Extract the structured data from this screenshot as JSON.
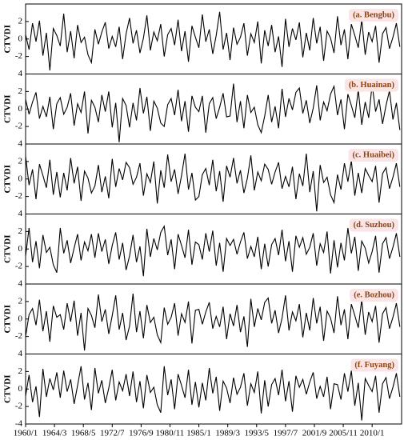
{
  "chart_data": {
    "type": "line",
    "ylabel": "CTVDI",
    "xlim": [
      0,
      651
    ],
    "ylim": [
      -4,
      4
    ],
    "yticks": [
      -4,
      -2,
      0,
      2,
      4
    ],
    "xticks": [
      {
        "value": 0,
        "label": "1960/1"
      },
      {
        "value": 50,
        "label": "1964/3"
      },
      {
        "value": 100,
        "label": "1968/5"
      },
      {
        "value": 150,
        "label": "1972/7"
      },
      {
        "value": 200,
        "label": "1976/9"
      },
      {
        "value": 250,
        "label": "1980/11"
      },
      {
        "value": 300,
        "label": "1985/1"
      },
      {
        "value": 350,
        "label": "1989/3"
      },
      {
        "value": 400,
        "label": "1993/5"
      },
      {
        "value": 450,
        "label": "1997/7"
      },
      {
        "value": 500,
        "label": "2001/9"
      },
      {
        "value": 550,
        "label": "2005/11"
      },
      {
        "value": 600,
        "label": "2010/1"
      }
    ],
    "x": [
      0,
      6,
      12,
      18,
      24,
      30,
      36,
      42,
      48,
      54,
      60,
      66,
      72,
      78,
      84,
      90,
      96,
      102,
      108,
      114,
      120,
      126,
      132,
      138,
      144,
      150,
      156,
      162,
      168,
      174,
      180,
      186,
      192,
      198,
      204,
      210,
      216,
      222,
      228,
      234,
      240,
      246,
      252,
      258,
      264,
      270,
      276,
      282,
      288,
      294,
      300,
      306,
      312,
      318,
      324,
      330,
      336,
      342,
      348,
      354,
      360,
      366,
      372,
      378,
      384,
      390,
      396,
      402,
      408,
      414,
      420,
      426,
      432,
      438,
      444,
      450,
      456,
      462,
      468,
      474,
      480,
      486,
      492,
      498,
      504,
      510,
      516,
      522,
      528,
      534,
      540,
      546,
      552,
      558,
      564,
      570,
      576,
      582,
      588,
      594,
      600,
      606,
      612,
      618,
      624,
      630,
      636,
      642,
      648
    ],
    "series": [
      {
        "name": "(a. Bengbu)",
        "color": "#000000",
        "values": [
          0.5,
          -1.2,
          1.8,
          -0.3,
          2.1,
          -1.9,
          0.7,
          -3.6,
          1.2,
          0.4,
          -0.8,
          2.9,
          -1.5,
          0.9,
          -2.2,
          1.6,
          -0.4,
          0.2,
          -1.8,
          -2.7,
          1.1,
          -0.6,
          0.8,
          1.9,
          -1.1,
          0.3,
          -0.9,
          1.4,
          -2.3,
          0.6,
          2.4,
          -0.5,
          1.0,
          -1.6,
          0.1,
          2.7,
          -1.3,
          0.8,
          -0.2,
          1.7,
          -2.0,
          0.5,
          1.2,
          -0.7,
          2.2,
          -1.4,
          0.9,
          -2.6,
          1.5,
          0.2,
          -1.0,
          2.8,
          -0.3,
          1.1,
          -1.7,
          0.4,
          3.1,
          -1.2,
          0.7,
          -2.4,
          1.3,
          -0.6,
          0.2,
          1.8,
          -1.9,
          0.6,
          -0.4,
          2.0,
          -2.8,
          1.0,
          -0.8,
          1.6,
          -1.5,
          0.3,
          -3.2,
          2.3,
          -0.9,
          1.2,
          -0.1,
          1.9,
          -2.1,
          0.7,
          -1.3,
          2.4,
          -0.5,
          1.4,
          -2.5,
          0.9,
          0.1,
          -1.6,
          2.6,
          -0.7,
          1.1,
          -2.3,
          1.7,
          0.4,
          -1.0,
          2.2,
          -1.8,
          0.8,
          -0.3,
          1.5,
          -2.7,
          0.6,
          1.3,
          -1.1,
          0.2,
          1.8,
          -0.9
        ]
      },
      {
        "name": "(b. Huainan)",
        "color": "#000000",
        "values": [
          1.1,
          -0.6,
          0.8,
          1.9,
          -1.1,
          0.3,
          -0.9,
          1.4,
          -2.3,
          0.6,
          1.3,
          -0.6,
          0.2,
          1.8,
          -1.9,
          0.6,
          -0.4,
          2.0,
          -2.8,
          1.0,
          0.2,
          -1.5,
          1.6,
          -0.3,
          2.0,
          -2.1,
          0.7,
          -3.8,
          1.2,
          0.4,
          -2.1,
          0.7,
          -1.3,
          2.4,
          -0.5,
          1.4,
          -2.5,
          0.9,
          0.1,
          -1.6,
          -2.0,
          0.5,
          1.2,
          -0.7,
          2.2,
          -1.4,
          0.9,
          -2.6,
          1.5,
          0.2,
          -0.3,
          1.5,
          -2.7,
          0.6,
          1.3,
          -1.1,
          0.2,
          1.8,
          -0.9,
          -0.8,
          2.9,
          -1.5,
          0.9,
          -2.2,
          1.6,
          -0.4,
          0.2,
          -1.8,
          -2.7,
          -0.8,
          1.6,
          -1.5,
          0.3,
          -2.2,
          2.3,
          -0.9,
          1.2,
          -0.1,
          1.9,
          2.4,
          -0.5,
          1.0,
          -1.6,
          0.1,
          2.7,
          -1.3,
          0.8,
          -0.2,
          1.7,
          2.6,
          -0.7,
          1.1,
          -2.3,
          1.7,
          0.4,
          -1.0,
          2.2,
          -1.8,
          0.8,
          -1.0,
          2.8,
          -0.3,
          1.1,
          -1.7,
          0.4,
          2.1,
          -1.2,
          0.7,
          -2.4
        ]
      },
      {
        "name": "(c. Huaibei)",
        "color": "#000000",
        "values": [
          2.6,
          -0.7,
          1.1,
          -2.3,
          1.7,
          0.4,
          -1.0,
          2.2,
          -1.8,
          0.8,
          -2.1,
          0.7,
          -1.3,
          2.4,
          -0.5,
          1.4,
          -2.5,
          0.9,
          0.1,
          -1.6,
          -0.8,
          1.6,
          -1.5,
          0.3,
          -2.2,
          2.3,
          -0.9,
          1.2,
          -0.1,
          1.9,
          1.3,
          -0.6,
          0.2,
          1.8,
          -1.9,
          0.6,
          -0.4,
          2.0,
          -2.8,
          1.0,
          -1.0,
          2.8,
          -0.3,
          1.1,
          -1.7,
          0.4,
          2.9,
          -1.2,
          0.7,
          -2.4,
          -2.0,
          0.5,
          1.2,
          -0.7,
          2.2,
          -1.4,
          0.9,
          -2.6,
          1.5,
          0.2,
          2.4,
          -0.5,
          1.0,
          -1.6,
          0.1,
          2.7,
          -1.3,
          0.8,
          -0.2,
          1.7,
          1.1,
          -0.6,
          0.8,
          1.9,
          -1.1,
          0.3,
          -0.9,
          1.4,
          -2.3,
          0.6,
          -0.8,
          2.9,
          -1.5,
          0.9,
          -3.7,
          1.6,
          -0.4,
          0.2,
          -1.8,
          -2.7,
          0.5,
          -1.2,
          1.8,
          -0.3,
          2.1,
          -1.9,
          0.7,
          -1.6,
          1.2,
          0.4,
          -0.3,
          1.5,
          -2.7,
          0.6,
          1.3,
          -1.1,
          0.2,
          1.8,
          -0.9
        ]
      },
      {
        "name": "(d. Suzhou)",
        "color": "#000000",
        "values": [
          -0.8,
          2.4,
          -1.5,
          0.9,
          -2.2,
          1.6,
          -0.4,
          0.2,
          -1.8,
          -2.7,
          2.4,
          -0.5,
          1.0,
          -1.6,
          0.1,
          1.7,
          -1.3,
          0.8,
          -0.2,
          1.7,
          -1.0,
          1.8,
          -0.3,
          1.1,
          -1.7,
          0.4,
          1.9,
          -1.2,
          0.7,
          -2.4,
          -0.8,
          1.6,
          -1.5,
          0.3,
          -3.1,
          2.3,
          -0.9,
          1.2,
          -0.1,
          1.9,
          2.6,
          -0.7,
          1.1,
          -2.3,
          1.7,
          0.4,
          -1.0,
          2.2,
          -1.8,
          0.8,
          0.5,
          -1.2,
          1.8,
          -0.3,
          2.1,
          -1.9,
          0.7,
          -2.6,
          1.2,
          0.4,
          1.1,
          -0.6,
          0.8,
          1.9,
          -1.1,
          0.3,
          -0.9,
          1.4,
          -2.3,
          0.6,
          -2.0,
          0.5,
          1.2,
          -0.7,
          2.2,
          -1.4,
          0.9,
          -2.6,
          1.5,
          0.2,
          1.3,
          -0.6,
          0.2,
          1.8,
          -1.9,
          0.6,
          -0.4,
          2.0,
          -2.8,
          1.0,
          -2.1,
          0.7,
          -1.3,
          2.4,
          -0.5,
          1.4,
          -2.5,
          0.9,
          0.1,
          -1.6,
          -0.3,
          1.5,
          -2.7,
          0.6,
          1.3,
          -1.1,
          0.2,
          1.8,
          -0.9
        ]
      },
      {
        "name": "(e. Bozhou)",
        "color": "#000000",
        "values": [
          -2.0,
          0.5,
          1.2,
          -0.7,
          2.2,
          -1.4,
          0.9,
          -2.6,
          1.5,
          0.2,
          0.5,
          -1.2,
          1.8,
          -0.3,
          2.1,
          -1.9,
          0.7,
          -3.6,
          1.2,
          0.4,
          -1.0,
          2.8,
          -0.3,
          1.1,
          -1.7,
          0.4,
          2.7,
          -1.2,
          0.7,
          -2.4,
          -0.8,
          2.9,
          -1.5,
          0.9,
          -2.2,
          1.6,
          -0.4,
          0.2,
          -1.8,
          -2.7,
          1.3,
          -0.6,
          0.2,
          1.8,
          -1.9,
          0.6,
          -0.4,
          2.0,
          -2.8,
          1.0,
          1.1,
          -0.6,
          0.8,
          1.9,
          -1.1,
          0.3,
          -0.9,
          1.4,
          -2.3,
          0.6,
          -0.8,
          1.6,
          -1.5,
          0.3,
          -3.2,
          2.3,
          -0.9,
          1.2,
          -0.1,
          1.9,
          2.4,
          -0.5,
          1.0,
          -1.6,
          0.1,
          2.7,
          -1.3,
          0.8,
          -0.2,
          1.7,
          -2.1,
          0.7,
          -1.3,
          2.4,
          -0.5,
          1.4,
          -2.5,
          0.9,
          0.1,
          -1.6,
          2.6,
          -0.7,
          1.1,
          -2.3,
          1.7,
          0.4,
          -1.0,
          2.2,
          -1.8,
          0.8,
          -0.3,
          1.5,
          -2.7,
          0.6,
          1.3,
          -1.1,
          0.2,
          1.8,
          -0.9
        ]
      },
      {
        "name": "(f. Fuyang)",
        "color": "#000000",
        "values": [
          -0.8,
          1.6,
          -1.5,
          0.3,
          -3.2,
          2.3,
          -0.9,
          1.2,
          -0.1,
          1.9,
          -1.0,
          2.1,
          -0.3,
          1.1,
          -1.7,
          0.4,
          2.6,
          -1.2,
          0.7,
          -2.4,
          2.4,
          -0.5,
          1.0,
          -1.6,
          0.1,
          2.2,
          -1.3,
          0.8,
          -0.2,
          1.7,
          -0.8,
          2.0,
          -1.5,
          0.9,
          -2.2,
          1.6,
          -0.4,
          0.2,
          -1.8,
          -2.7,
          2.6,
          -0.7,
          1.1,
          -2.3,
          1.7,
          0.4,
          -1.0,
          2.2,
          -1.8,
          0.8,
          -2.1,
          0.7,
          -1.3,
          2.4,
          -0.5,
          1.4,
          -2.5,
          0.9,
          0.1,
          -1.6,
          1.3,
          -0.6,
          0.2,
          1.8,
          -1.9,
          0.6,
          -0.4,
          2.0,
          -2.8,
          1.0,
          -2.0,
          0.5,
          1.2,
          -0.7,
          2.2,
          -1.4,
          0.9,
          -2.6,
          1.5,
          0.2,
          1.1,
          -0.6,
          0.8,
          1.9,
          -1.1,
          0.3,
          -0.9,
          1.4,
          -2.3,
          0.6,
          0.5,
          -1.2,
          1.8,
          -0.3,
          2.1,
          -1.9,
          0.7,
          -3.6,
          1.2,
          0.4,
          -0.3,
          1.5,
          -2.7,
          0.6,
          1.3,
          -1.1,
          0.2,
          1.8,
          -0.9
        ]
      }
    ]
  }
}
